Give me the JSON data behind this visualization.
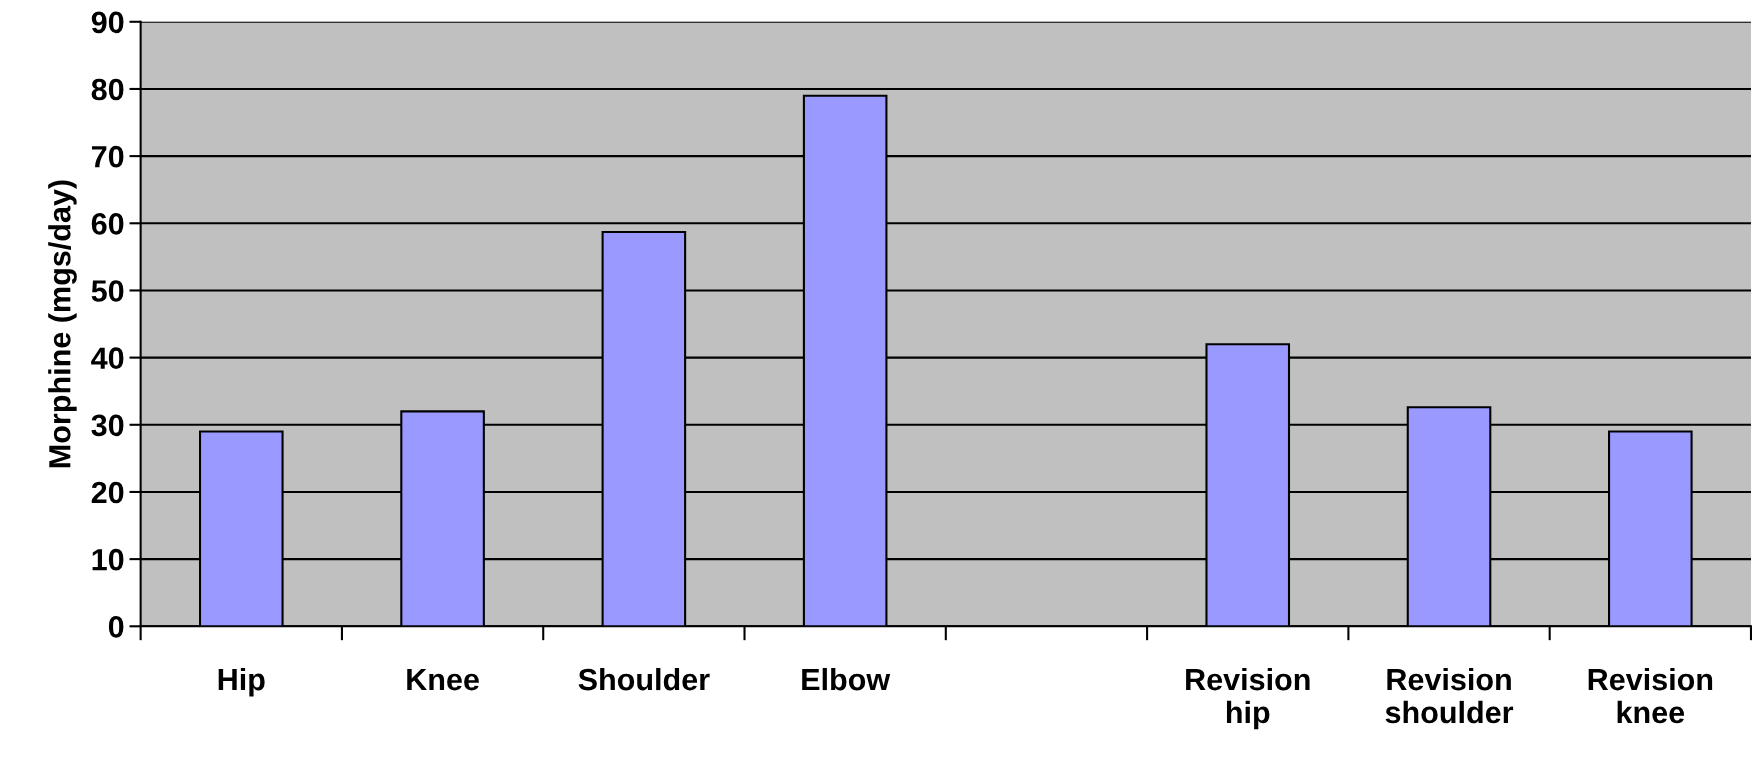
{
  "chart_data": {
    "type": "bar",
    "ylabel": "Morphine (mgs/day)",
    "categories": [
      "Hip",
      "Knee",
      "Shoulder",
      "Elbow",
      null,
      "Revision hip",
      "Revision shoulder",
      "Revision knee"
    ],
    "values": [
      29,
      32,
      58.7,
      79,
      null,
      42,
      32.6,
      29
    ],
    "color": "#9999ff",
    "ylim": [
      0,
      90
    ],
    "yticks": [
      0,
      10,
      20,
      30,
      40,
      50,
      60,
      70,
      80,
      90
    ],
    "grid": "y"
  }
}
